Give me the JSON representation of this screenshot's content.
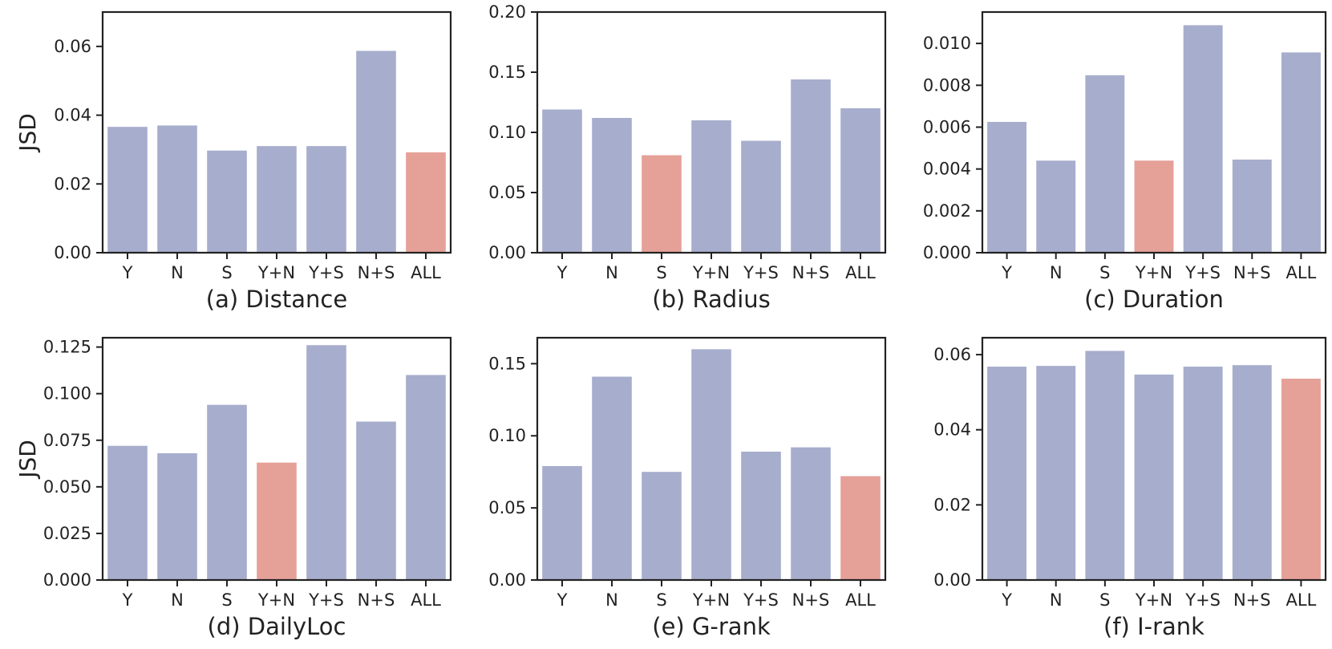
{
  "colors": {
    "default_bar": "#a7adcc",
    "highlight_bar": "#e5a098",
    "axis": "#222222"
  },
  "chart_data": [
    {
      "type": "bar",
      "title": "(a) Distance",
      "xlabel": "",
      "ylabel": "JSD",
      "categories": [
        "Y",
        "N",
        "S",
        "Y+N",
        "Y+S",
        "N+S",
        "ALL"
      ],
      "values": [
        0.0366,
        0.037,
        0.0297,
        0.031,
        0.031,
        0.0587,
        0.0292
      ],
      "highlight_index": 6,
      "ylim": [
        0,
        0.07
      ],
      "yticks": [
        0,
        0.02,
        0.04,
        0.06
      ],
      "ytick_labels": [
        "0.00",
        "0.02",
        "0.04",
        "0.06"
      ]
    },
    {
      "type": "bar",
      "title": "(b) Radius",
      "xlabel": "",
      "ylabel": "",
      "categories": [
        "Y",
        "N",
        "S",
        "Y+N",
        "Y+S",
        "N+S",
        "ALL"
      ],
      "values": [
        0.119,
        0.112,
        0.081,
        0.11,
        0.093,
        0.144,
        0.12
      ],
      "highlight_index": 2,
      "ylim": [
        0,
        0.2
      ],
      "yticks": [
        0,
        0.05,
        0.1,
        0.15,
        0.2
      ],
      "ytick_labels": [
        "0.00",
        "0.05",
        "0.10",
        "0.15",
        "0.20"
      ]
    },
    {
      "type": "bar",
      "title": "(c) Duration",
      "xlabel": "",
      "ylabel": "",
      "categories": [
        "Y",
        "N",
        "S",
        "Y+N",
        "Y+S",
        "N+S",
        "ALL"
      ],
      "values": [
        0.00625,
        0.0044,
        0.00848,
        0.0044,
        0.01087,
        0.00445,
        0.00957
      ],
      "highlight_index": 3,
      "ylim": [
        0,
        0.0115
      ],
      "yticks": [
        0,
        0.002,
        0.004,
        0.006,
        0.008,
        0.01
      ],
      "ytick_labels": [
        "0.000",
        "0.002",
        "0.004",
        "0.006",
        "0.008",
        "0.010"
      ]
    },
    {
      "type": "bar",
      "title": "(d) DailyLoc",
      "xlabel": "",
      "ylabel": "JSD",
      "categories": [
        "Y",
        "N",
        "S",
        "Y+N",
        "Y+S",
        "N+S",
        "ALL"
      ],
      "values": [
        0.072,
        0.068,
        0.094,
        0.063,
        0.126,
        0.085,
        0.11
      ],
      "highlight_index": 3,
      "ylim": [
        0,
        0.13
      ],
      "yticks": [
        0,
        0.025,
        0.05,
        0.075,
        0.1,
        0.125
      ],
      "ytick_labels": [
        "0.000",
        "0.025",
        "0.050",
        "0.075",
        "0.100",
        "0.125"
      ]
    },
    {
      "type": "bar",
      "title": "(e) G-rank",
      "xlabel": "",
      "ylabel": "",
      "categories": [
        "Y",
        "N",
        "S",
        "Y+N",
        "Y+S",
        "N+S",
        "ALL"
      ],
      "values": [
        0.079,
        0.141,
        0.075,
        0.16,
        0.089,
        0.092,
        0.072
      ],
      "highlight_index": 6,
      "ylim": [
        0,
        0.168
      ],
      "yticks": [
        0,
        0.05,
        0.1,
        0.15
      ],
      "ytick_labels": [
        "0.00",
        "0.05",
        "0.10",
        "0.15"
      ]
    },
    {
      "type": "bar",
      "title": "(f) I-rank",
      "xlabel": "",
      "ylabel": "",
      "categories": [
        "Y",
        "N",
        "S",
        "Y+N",
        "Y+S",
        "N+S",
        "ALL"
      ],
      "values": [
        0.0568,
        0.057,
        0.061,
        0.0547,
        0.0568,
        0.0572,
        0.0536
      ],
      "highlight_index": 6,
      "ylim": [
        0,
        0.0645
      ],
      "yticks": [
        0,
        0.02,
        0.04,
        0.06
      ],
      "ytick_labels": [
        "0.00",
        "0.02",
        "0.04",
        "0.06"
      ]
    }
  ]
}
